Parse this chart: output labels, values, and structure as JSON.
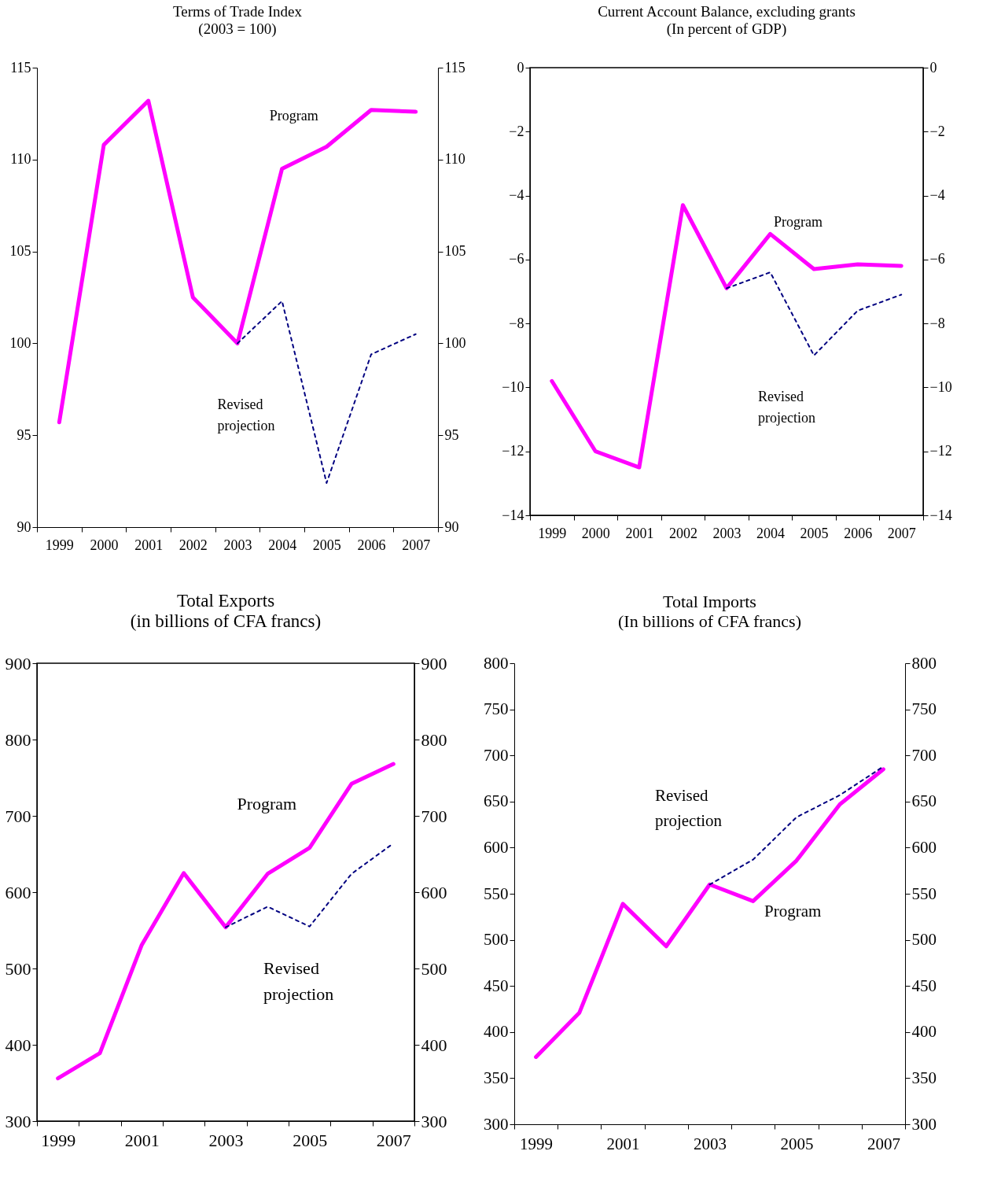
{
  "chart_data": [
    {
      "type": "line",
      "title": "Terms of Trade Index",
      "subtitle": "(2003 = 100)",
      "categories": [
        "1999",
        "2000",
        "2001",
        "2002",
        "2003",
        "2004",
        "2005",
        "2006",
        "2007"
      ],
      "ylim": [
        90,
        115
      ],
      "yticks": [
        90,
        95,
        100,
        105,
        110,
        115
      ],
      "y2lim": [
        90,
        115
      ],
      "y2ticks": [
        90,
        95,
        100,
        105,
        110,
        115
      ],
      "grid": false,
      "series": [
        {
          "name": "Program",
          "color": "#ff00ff",
          "line_style": "solid",
          "values": [
            95.7,
            110.8,
            113.2,
            102.5,
            100,
            109.5,
            110.7,
            112.7,
            112.6
          ]
        },
        {
          "name": "Revised projection",
          "color": "#000080",
          "line_style": "dotted",
          "values": [
            null,
            null,
            null,
            null,
            100,
            102.3,
            92.4,
            99.4,
            100.5
          ]
        }
      ]
    },
    {
      "type": "line",
      "title": "Current Account Balance, excluding grants",
      "subtitle": "(In percent of GDP)",
      "categories": [
        "1999",
        "2000",
        "2001",
        "2002",
        "2003",
        "2004",
        "2005",
        "2006",
        "2007"
      ],
      "ylim": [
        -14,
        0
      ],
      "yticks": [
        -14,
        -12,
        -10,
        -8,
        -6,
        -4,
        -2,
        0
      ],
      "y2lim": [
        -14,
        0
      ],
      "y2ticks": [
        -14,
        -12,
        -10,
        -8,
        -6,
        -4,
        -2,
        0
      ],
      "grid": false,
      "series": [
        {
          "name": "Program",
          "color": "#ff00ff",
          "line_style": "solid",
          "values": [
            -9.8,
            -12.0,
            -12.5,
            -4.3,
            -6.9,
            -5.2,
            -6.3,
            -6.15,
            -6.2
          ]
        },
        {
          "name": "Revised projection",
          "color": "#000080",
          "line_style": "dotted",
          "values": [
            null,
            null,
            null,
            null,
            -6.9,
            -6.4,
            -9.0,
            -7.6,
            -7.1
          ]
        }
      ]
    },
    {
      "type": "line",
      "title": "Total Exports",
      "subtitle": "(in billions of CFA francs)",
      "categories": [
        "1999",
        null,
        "2001",
        null,
        "2003",
        null,
        "2005",
        null,
        "2007"
      ],
      "ylim": [
        300,
        900
      ],
      "yticks": [
        300,
        400,
        500,
        600,
        700,
        800,
        900
      ],
      "y2lim": [
        300,
        900
      ],
      "y2ticks": [
        300,
        400,
        500,
        600,
        700,
        800,
        900
      ],
      "grid": false,
      "series": [
        {
          "name": "Program",
          "color": "#ff00ff",
          "line_style": "solid",
          "values": [
            356,
            389,
            531,
            625,
            554,
            624,
            658,
            742,
            768
          ]
        },
        {
          "name": "Revised projection",
          "color": "#000080",
          "line_style": "dotted",
          "values": [
            null,
            null,
            null,
            null,
            554,
            581,
            555,
            624,
            664
          ]
        }
      ]
    },
    {
      "type": "line",
      "title": "Total Imports",
      "subtitle": "(In billions of CFA francs)",
      "categories": [
        "1999",
        null,
        "2001",
        null,
        "2003",
        null,
        "2005",
        null,
        "2007"
      ],
      "ylim": [
        300,
        800
      ],
      "yticks": [
        300,
        350,
        400,
        450,
        500,
        550,
        600,
        650,
        700,
        750,
        800
      ],
      "y2lim": [
        300,
        800
      ],
      "y2ticks": [
        300,
        350,
        400,
        450,
        500,
        550,
        600,
        650,
        700,
        750,
        800
      ],
      "grid": false,
      "series": [
        {
          "name": "Program",
          "color": "#ff00ff",
          "line_style": "solid",
          "values": [
            373,
            421,
            539,
            493,
            560,
            542,
            586,
            647,
            685
          ]
        },
        {
          "name": "Revised projection",
          "color": "#000080",
          "line_style": "dotted",
          "values": [
            null,
            null,
            null,
            null,
            560,
            587,
            633,
            657,
            688
          ]
        }
      ]
    }
  ]
}
